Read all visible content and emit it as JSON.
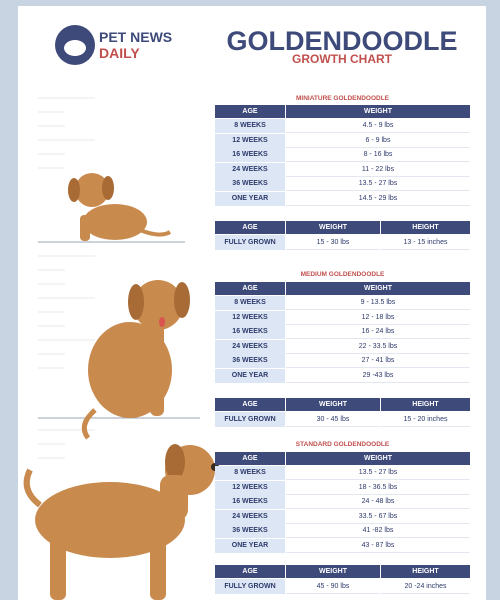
{
  "logo": {
    "line1": "PET NEWS",
    "line2": "DAILY"
  },
  "header": {
    "title": "GOLDENDOODLE",
    "subtitle": "GROWTH CHART"
  },
  "sections": [
    {
      "name": "MINIATURE GOLDENDOODLE",
      "headers": [
        "AGE",
        "WEIGHT"
      ],
      "rows": [
        [
          "8 WEEKS",
          "4.5 - 9 lbs"
        ],
        [
          "12 WEEKS",
          "6 - 9 lbs"
        ],
        [
          "16 WEEKS",
          "8 - 16 lbs"
        ],
        [
          "24 WEEKS",
          "11 - 22 lbs"
        ],
        [
          "36 WEEKS",
          "13.5 - 27 lbs"
        ],
        [
          "ONE YEAR",
          "14.5 - 29 lbs"
        ]
      ],
      "summary_headers": [
        "AGE",
        "WEIGHT",
        "HEIGHT"
      ],
      "summary": [
        "FULLY GROWN",
        "15 - 30 lbs",
        "13 - 15 inches"
      ]
    },
    {
      "name": "MEDIUM GOLDENDOODLE",
      "headers": [
        "AGE",
        "WEIGHT"
      ],
      "rows": [
        [
          "8 WEEKS",
          "9 - 13.5 lbs"
        ],
        [
          "12 WEEKS",
          "12 - 18 lbs"
        ],
        [
          "16 WEEKS",
          "16 - 24 lbs"
        ],
        [
          "24 WEEKS",
          "22 - 33.5 lbs"
        ],
        [
          "36 WEEKS",
          "27 - 41 lbs"
        ],
        [
          "ONE YEAR",
          "29 -43 lbs"
        ]
      ],
      "summary_headers": [
        "AGE",
        "WEIGHT",
        "HEIGHT"
      ],
      "summary": [
        "FULLY GROWN",
        "30 - 45 lbs",
        "15 - 20 inches"
      ]
    },
    {
      "name": "STANDARD GOLDENDOODLE",
      "headers": [
        "AGE",
        "WEIGHT"
      ],
      "rows": [
        [
          "8 WEEKS",
          "13.5 - 27 lbs"
        ],
        [
          "12 WEEKS",
          "18 - 36.5 lbs"
        ],
        [
          "16 WEEKS",
          "24 - 48 lbs"
        ],
        [
          "24 WEEKS",
          "33.5 - 67 lbs"
        ],
        [
          "36 WEEKS",
          "41 -82 lbs"
        ],
        [
          "ONE YEAR",
          "43 - 87 lbs"
        ]
      ],
      "summary_headers": [
        "AGE",
        "WEIGHT",
        "HEIGHT"
      ],
      "summary": [
        "FULLY GROWN",
        "45 - 90 lbs",
        "20 -24 inches"
      ]
    }
  ]
}
